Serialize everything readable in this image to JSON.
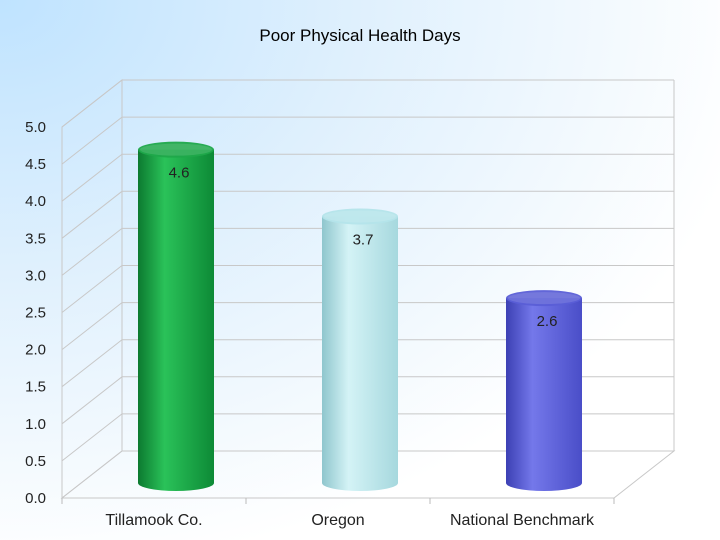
{
  "chart_data": {
    "type": "bar",
    "title": "Poor Physical Health Days",
    "xlabel": "",
    "ylabel": "",
    "categories": [
      "Tillamook Co.",
      "Oregon",
      "National Benchmark"
    ],
    "values": [
      4.6,
      3.7,
      2.6
    ],
    "data_labels": [
      "4.6",
      "3.7",
      "2.6"
    ],
    "ylim": [
      0,
      5
    ],
    "yticks": [
      "0.0",
      "0.5",
      "1.0",
      "1.5",
      "2.0",
      "2.5",
      "3.0",
      "3.5",
      "4.0",
      "4.5",
      "5.0"
    ],
    "grid": true,
    "legend": "none",
    "style": "3d-cylinder",
    "colors": [
      "#1fa84a",
      "#b4e4ea",
      "#5a5ed6"
    ]
  }
}
